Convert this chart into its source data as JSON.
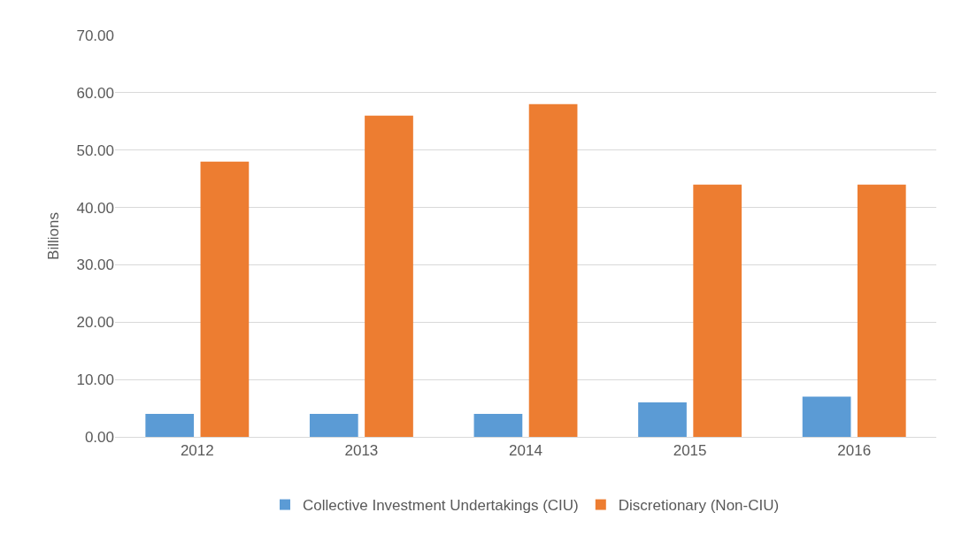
{
  "chart_data": {
    "type": "bar",
    "ylabel": "Billions",
    "categories": [
      "2012",
      "2013",
      "2014",
      "2015",
      "2016"
    ],
    "series": [
      {
        "name": "Collective Investment Undertakings (CIU)",
        "color": "#5b9bd5",
        "values": [
          4,
          4,
          4,
          6,
          7
        ]
      },
      {
        "name": "Discretionary (Non-CIU)",
        "color": "#ed7d31",
        "values": [
          48,
          56,
          58,
          44,
          44
        ]
      }
    ],
    "ylim": [
      0,
      70
    ],
    "yticks": [
      {
        "value": 0,
        "label": "0.00"
      },
      {
        "value": 10,
        "label": "10.00"
      },
      {
        "value": 20,
        "label": "20.00"
      },
      {
        "value": 30,
        "label": "30.00"
      },
      {
        "value": 40,
        "label": "40.00"
      },
      {
        "value": 50,
        "label": "50.00"
      },
      {
        "value": 60,
        "label": "60.00"
      },
      {
        "value": 70,
        "label": "70.00"
      }
    ],
    "grid": "y",
    "legend": "bottom"
  }
}
